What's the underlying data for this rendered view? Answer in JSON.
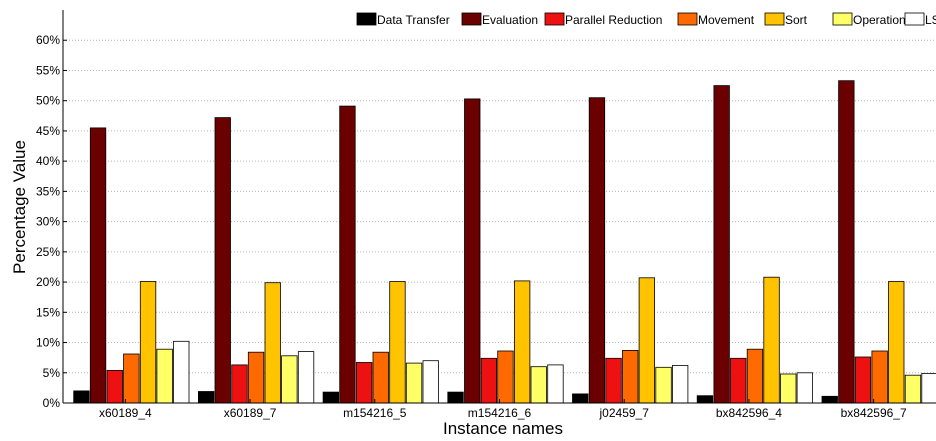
{
  "chart_data": {
    "type": "bar",
    "title": "",
    "xlabel": "Instance names",
    "ylabel": "Percentage Value",
    "ylim": [
      0,
      65
    ],
    "yticks": [
      "0%",
      "5%",
      "10%",
      "15%",
      "20%",
      "25%",
      "30%",
      "35%",
      "40%",
      "45%",
      "50%",
      "55%",
      "60%"
    ],
    "grid": true,
    "legend_position": "top",
    "categories": [
      "x60189_4",
      "x60189_7",
      "m154216_5",
      "m154216_6",
      "j02459_7",
      "bx842596_4",
      "bx842596_7"
    ],
    "series": [
      {
        "name": "Data Transfer",
        "color": "#000000",
        "values": [
          2.0,
          1.9,
          1.8,
          1.8,
          1.5,
          1.2,
          1.1
        ]
      },
      {
        "name": "Evaluation",
        "color": "#6b0000",
        "values": [
          45.5,
          47.2,
          49.1,
          50.3,
          50.5,
          52.5,
          53.3
        ]
      },
      {
        "name": "Parallel Reduction",
        "color": "#ee1111",
        "values": [
          5.4,
          6.3,
          6.7,
          7.4,
          7.4,
          7.4,
          7.6
        ]
      },
      {
        "name": "Movement",
        "color": "#ff6a00",
        "values": [
          8.1,
          8.4,
          8.4,
          8.6,
          8.7,
          8.9,
          8.6
        ]
      },
      {
        "name": "Sort",
        "color": "#ffc300",
        "values": [
          20.1,
          19.9,
          20.1,
          20.2,
          20.7,
          20.8,
          20.1
        ]
      },
      {
        "name": "Operations",
        "color": "#ffff66",
        "values": [
          8.9,
          7.8,
          6.6,
          6.0,
          5.9,
          4.8,
          4.6
        ]
      },
      {
        "name": "LS",
        "color": "#ffffff",
        "values": [
          10.2,
          8.5,
          7.0,
          6.3,
          6.2,
          5.0,
          4.9
        ]
      }
    ]
  }
}
